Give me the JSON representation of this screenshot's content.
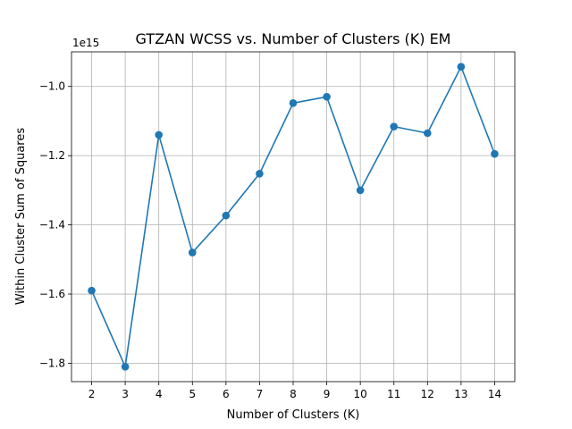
{
  "chart_data": {
    "type": "line",
    "title": "GTZAN WCSS vs. Number of Clusters (K) EM",
    "xlabel": "Number of Clusters (K)",
    "ylabel": "Within Cluster Sum of Squares",
    "y_offset_label": "1e15",
    "x": [
      2,
      3,
      4,
      5,
      6,
      7,
      8,
      9,
      10,
      11,
      12,
      13,
      14
    ],
    "series": [
      {
        "values": [
          -1590000000000000.0,
          -1810000000000000.0,
          -1140000000000000.0,
          -1480000000000000.0,
          -1373000000000000.0,
          -1252000000000000.0,
          -1048000000000000.0,
          -1030000000000000.0,
          -1300000000000000.0,
          -1116000000000000.0,
          -1135000000000000.0,
          -943000000000000.0,
          -1195000000000000.0
        ],
        "color": "#1f77b4",
        "marker": "circle"
      }
    ],
    "xlim": [
      1.4,
      14.6
    ],
    "ylim": [
      -1853000000000000.0,
      -900000000000000.0
    ],
    "xticks": [
      2,
      3,
      4,
      5,
      6,
      7,
      8,
      9,
      10,
      11,
      12,
      13,
      14
    ],
    "xtick_labels": [
      "2",
      "3",
      "4",
      "5",
      "6",
      "7",
      "8",
      "9",
      "10",
      "11",
      "12",
      "13",
      "14"
    ],
    "yticks": [
      -1800000000000000.0,
      -1600000000000000.0,
      -1400000000000000.0,
      -1200000000000000.0,
      -1000000000000000.0
    ],
    "ytick_labels": [
      "−1.8",
      "−1.6",
      "−1.4",
      "−1.2",
      "−1.0"
    ],
    "grid": true
  }
}
